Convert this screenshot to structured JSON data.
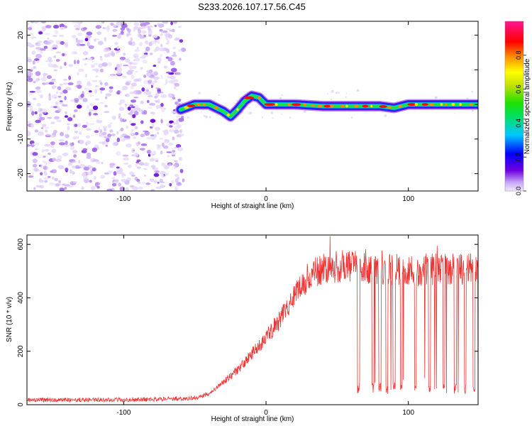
{
  "figure_title": "S233.2026.107.17.56.C45",
  "chart_data": [
    {
      "type": "heatmap",
      "title": "S233.2026.107.17.56.C45",
      "xlabel": "Height of straight line (km)",
      "ylabel": "Frequency (Hz)",
      "xlim": [
        -168,
        149
      ],
      "ylim": [
        -25,
        24
      ],
      "xticks": [
        -100,
        0,
        100
      ],
      "yticks": [
        -20,
        -10,
        0,
        10,
        20
      ],
      "noise_region_x": [
        -168,
        -60
      ],
      "ridge": {
        "x": [
          -60,
          -50,
          -40,
          -30,
          -25,
          -20,
          -15,
          -10,
          -5,
          0,
          10,
          20,
          40,
          60,
          80,
          90,
          100,
          120,
          149
        ],
        "hz": [
          -1.5,
          0,
          0,
          -2,
          -3.5,
          -1.5,
          1,
          2.5,
          2,
          0,
          0,
          0,
          -0.5,
          -0.5,
          -0.5,
          -1,
          0,
          0,
          0
        ]
      },
      "colorbar": {
        "label": "Normalized spectral amplitude",
        "range": [
          0,
          1
        ],
        "ticks": [
          "0.0",
          "0.2",
          "0.4",
          "0.6",
          "0.8"
        ]
      }
    },
    {
      "type": "line",
      "xlabel": "Height of straight line (km)",
      "ylabel": "SNR (10 * v/v)",
      "xlim": [
        -168,
        149
      ],
      "ylim": [
        0,
        635
      ],
      "xticks": [
        -100,
        0,
        100
      ],
      "yticks": [
        0,
        200,
        400,
        600
      ],
      "color": "#ee3333",
      "series": [
        {
          "name": "SNR",
          "envelope_x": [
            -168,
            -120,
            -80,
            -50,
            -40,
            -30,
            -20,
            -10,
            0,
            10,
            20,
            30,
            40,
            60,
            80,
            100,
            120,
            149
          ],
          "envelope_y": [
            18,
            18,
            20,
            25,
            40,
            85,
            130,
            190,
            250,
            320,
            420,
            480,
            510,
            520,
            510,
            500,
            510,
            505
          ],
          "dropouts_x": [
            65,
            75,
            80,
            85,
            90,
            95,
            105,
            115,
            125,
            133,
            140,
            146
          ]
        }
      ]
    }
  ]
}
